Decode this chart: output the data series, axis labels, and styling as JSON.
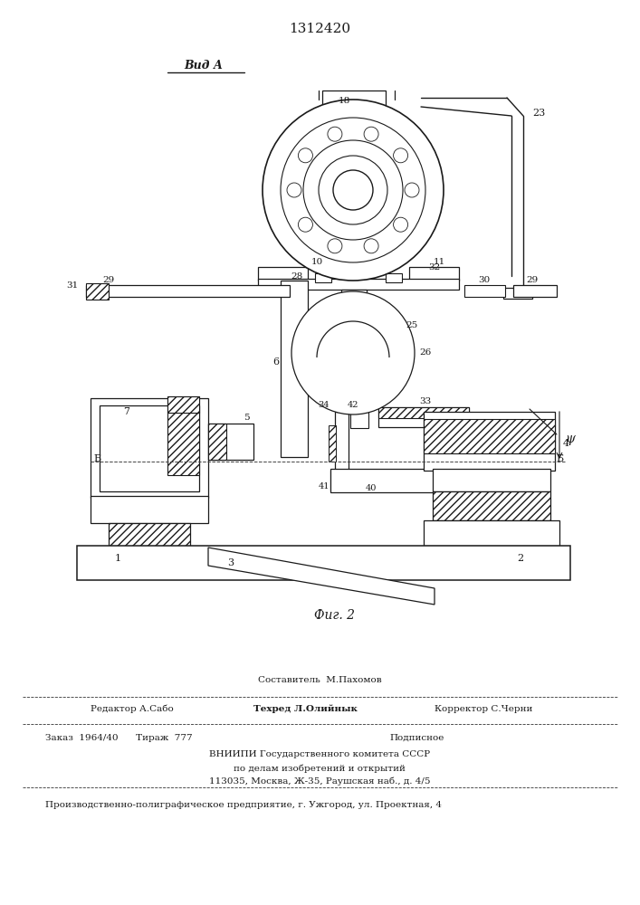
{
  "title": "1312420",
  "view_label": "Вид А",
  "fig_label": "Фиг. 2",
  "bg_color": "#ffffff",
  "line_color": "#1a1a1a"
}
